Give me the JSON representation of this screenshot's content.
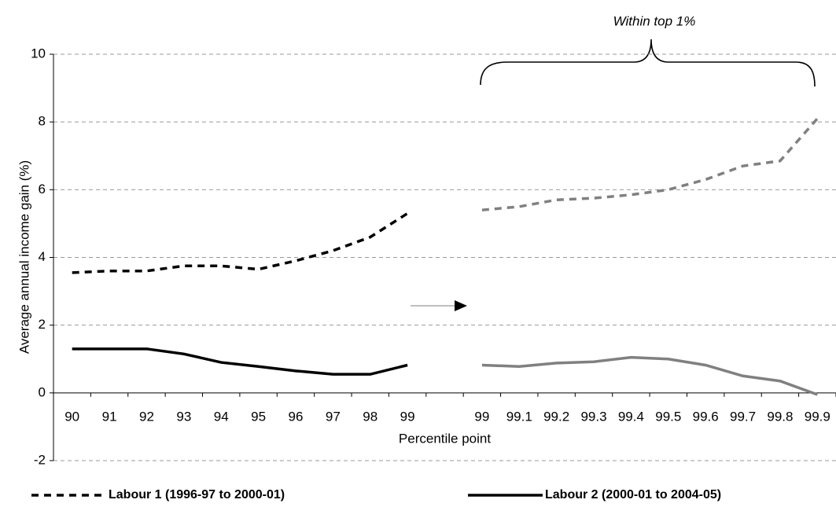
{
  "chart_data": {
    "type": "line",
    "annotation": "Within top 1%",
    "x_label": "Percentile point",
    "y_label": "Average annual income gain (%)",
    "categories": [
      "90",
      "91",
      "92",
      "93",
      "94",
      "95",
      "96",
      "97",
      "98",
      "99",
      null,
      "99",
      "99.1",
      "99.2",
      "99.3",
      "99.4",
      "99.5",
      "99.6",
      "99.7",
      "99.8",
      "99.9"
    ],
    "series": [
      {
        "name": "Labour 1 (1996-97 to 2000-01)",
        "color": "#000000",
        "gap_color": "#808080",
        "dashed": true,
        "values": [
          3.55,
          3.6,
          3.6,
          3.75,
          3.75,
          3.65,
          3.9,
          4.2,
          4.6,
          5.3,
          null,
          5.4,
          5.5,
          5.7,
          5.75,
          5.85,
          6.0,
          6.3,
          6.7,
          6.85,
          8.1
        ]
      },
      {
        "name": "Labour 2 (2000-01 to 2004-05)",
        "color": "#000000",
        "gap_color": "#808080",
        "dashed": false,
        "values": [
          1.3,
          1.3,
          1.3,
          1.15,
          0.9,
          0.78,
          0.65,
          0.55,
          0.55,
          0.82,
          null,
          0.82,
          0.78,
          0.88,
          0.92,
          1.05,
          1.0,
          0.82,
          0.5,
          0.35,
          -0.05
        ]
      }
    ],
    "ylim": [
      -2,
      10
    ],
    "yticks": [
      -2,
      0,
      2,
      4,
      6,
      8,
      10
    ],
    "grid": true,
    "legend": "bottom"
  }
}
